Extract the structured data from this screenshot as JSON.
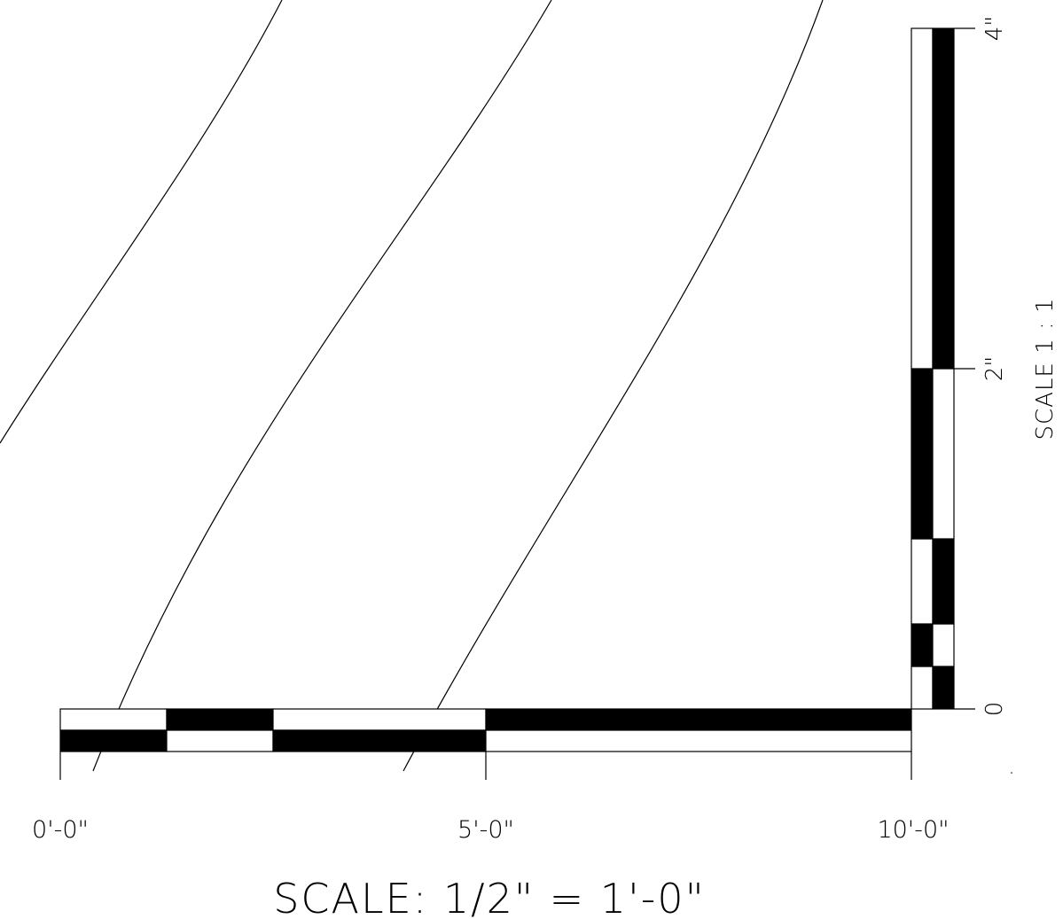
{
  "colors": {
    "ink": "#000000",
    "paper": "#ffffff"
  },
  "horizontal_scale": {
    "labels": [
      "0'-0\"",
      "5'-0\"",
      "10'-0\""
    ],
    "title": "SCALE: 1/2\" = 1'-0\""
  },
  "vertical_scale": {
    "labels": [
      "0",
      "2\"",
      "4\""
    ],
    "title": "SCALE 1 : 1"
  }
}
